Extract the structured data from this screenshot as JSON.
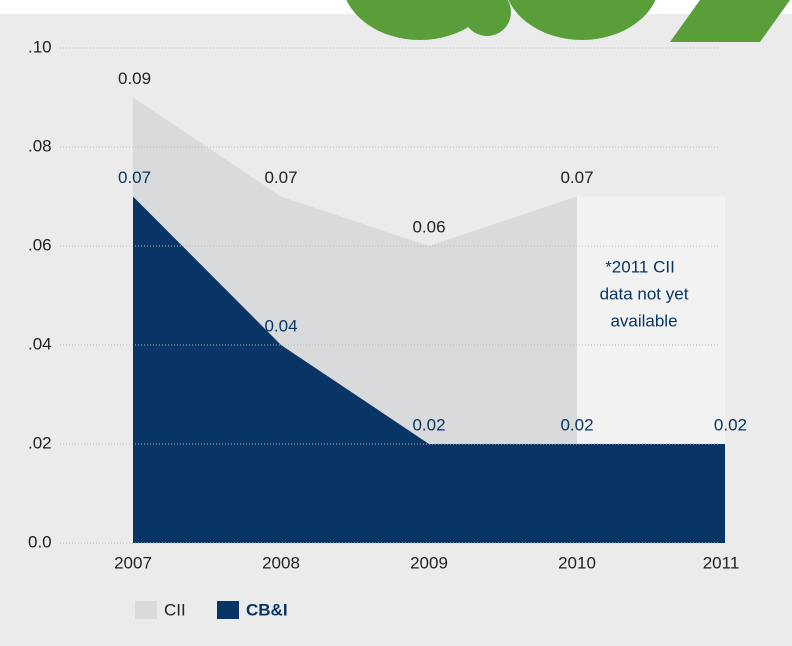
{
  "chart_data": {
    "type": "area",
    "categories": [
      "2007",
      "2008",
      "2009",
      "2010",
      "2011"
    ],
    "series": [
      {
        "name": "CII",
        "color": "#d9dadb",
        "label_color": "#222222",
        "values": [
          0.09,
          0.07,
          0.06,
          0.07,
          null
        ]
      },
      {
        "name": "CB&I",
        "color": "#083566",
        "label_color": "#083566",
        "values": [
          0.07,
          0.04,
          0.02,
          0.02,
          0.02
        ]
      }
    ],
    "ylim": [
      0,
      0.1
    ],
    "yticks": [
      {
        "value": 0,
        "label": "0.0"
      },
      {
        "value": 0.02,
        "label": ".02"
      },
      {
        "value": 0.04,
        "label": ".04"
      },
      {
        "value": 0.06,
        "label": ".06"
      },
      {
        "value": 0.08,
        "label": ".08"
      },
      {
        "value": 0.1,
        "label": ".10"
      }
    ],
    "grid": true,
    "annotation": [
      "*2011 CII",
      "data not yet",
      "available"
    ]
  }
}
